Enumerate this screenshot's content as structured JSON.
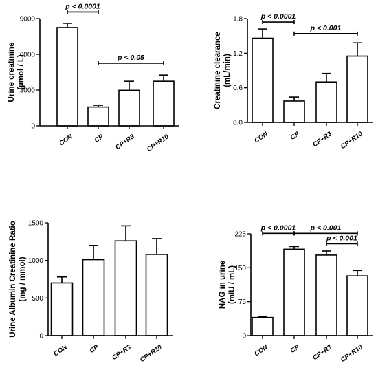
{
  "chart_data": [
    {
      "type": "bar",
      "categories": [
        "CON",
        "CP",
        "CP+R3",
        "CP+R10"
      ],
      "values": [
        8250,
        1580,
        2980,
        3740
      ],
      "errors": [
        350,
        150,
        760,
        520
      ],
      "ylabel": [
        "Urine creatinine",
        "(µmol / L)"
      ],
      "ylim": [
        0,
        9000
      ],
      "yticks": [
        "0",
        "3000",
        "6000",
        "9000"
      ],
      "significance": [
        {
          "from": 0,
          "to": 1,
          "label": "p < 0.0001",
          "y": 9550
        },
        {
          "from": 1,
          "to": 3,
          "label": "p < 0.05",
          "y": 5250
        }
      ]
    },
    {
      "type": "bar",
      "categories": [
        "CON",
        "CP",
        "CP+R3",
        "CP+R10"
      ],
      "values": [
        1.46,
        0.37,
        0.7,
        1.15
      ],
      "errors": [
        0.16,
        0.07,
        0.15,
        0.23
      ],
      "ylabel": [
        "Creatinine clearance",
        "(mL/min)"
      ],
      "ylim": [
        0,
        1.8
      ],
      "yticks": [
        "0.0",
        "0.6",
        "1.2",
        "1.8"
      ],
      "significance": [
        {
          "from": 0,
          "to": 1,
          "label": "p < 0.0001",
          "y": 1.74
        },
        {
          "from": 1,
          "to": 3,
          "label": "p < 0.001",
          "y": 1.54
        }
      ]
    },
    {
      "type": "bar",
      "categories": [
        "CON",
        "CP",
        "CP+R3",
        "CP+R10"
      ],
      "values": [
        700,
        1010,
        1260,
        1080
      ],
      "errors": [
        80,
        190,
        200,
        210
      ],
      "ylabel": [
        "Urine Albumin Creatinine Ratio",
        "(mg / mmol)"
      ],
      "ylim": [
        0,
        1500
      ],
      "yticks": [
        "0",
        "500",
        "1000",
        "1500"
      ],
      "significance": []
    },
    {
      "type": "bar",
      "categories": [
        "CON",
        "CP",
        "CP+R3",
        "CP+R10"
      ],
      "values": [
        40,
        191,
        178,
        132
      ],
      "errors": [
        2,
        6,
        9,
        12
      ],
      "ylabel": [
        "NAG in urine",
        "(mIU / mL)"
      ],
      "ylim": [
        0,
        225
      ],
      "yticks": [
        "0",
        "75",
        "150",
        "225"
      ],
      "significance": [
        {
          "from": 0,
          "to": 1,
          "label": "p < 0.0001",
          "y": 226
        },
        {
          "from": 1,
          "to": 3,
          "label": "p < 0.001",
          "y": 226
        },
        {
          "from": 2,
          "to": 3,
          "label": "p < 0.001",
          "y": 203
        }
      ]
    }
  ]
}
